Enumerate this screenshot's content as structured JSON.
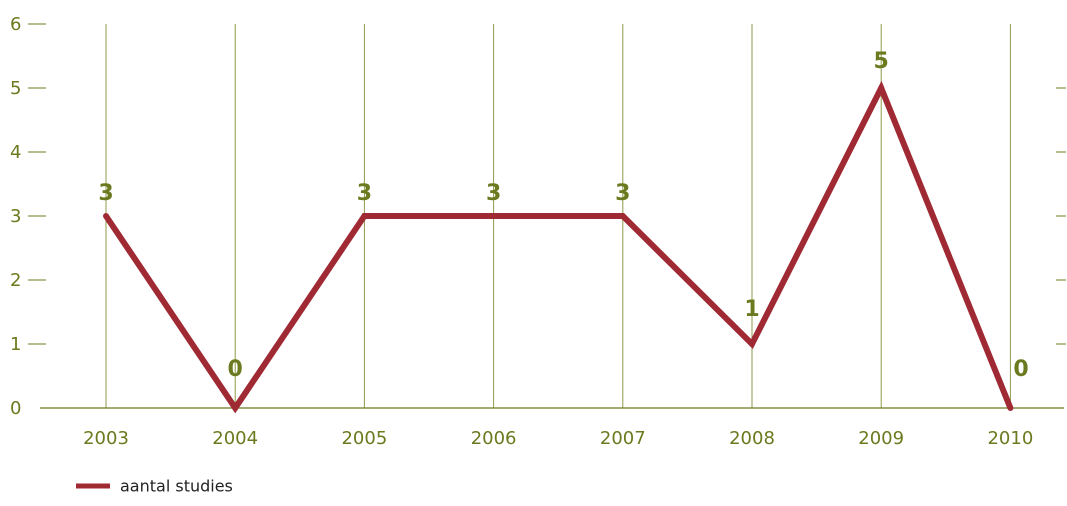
{
  "chart_data": {
    "type": "line",
    "categories": [
      "2003",
      "2004",
      "2005",
      "2006",
      "2007",
      "2008",
      "2009",
      "2010"
    ],
    "series": [
      {
        "name": "aantal studies",
        "values": [
          3,
          0,
          3,
          3,
          3,
          1,
          5,
          0
        ]
      }
    ],
    "y_ticks": [
      0,
      1,
      2,
      3,
      4,
      5,
      6
    ],
    "ylim": [
      0,
      6
    ],
    "data_labels_shown": true,
    "grid": "vertical lines at categories",
    "legend": "bottom-left",
    "title": "",
    "xlabel": "",
    "ylabel": ""
  },
  "colors": {
    "line": "#a02a34",
    "text": "#6b7a1e",
    "grid": "#8f9a4a",
    "axis": "#6b7a1e"
  }
}
